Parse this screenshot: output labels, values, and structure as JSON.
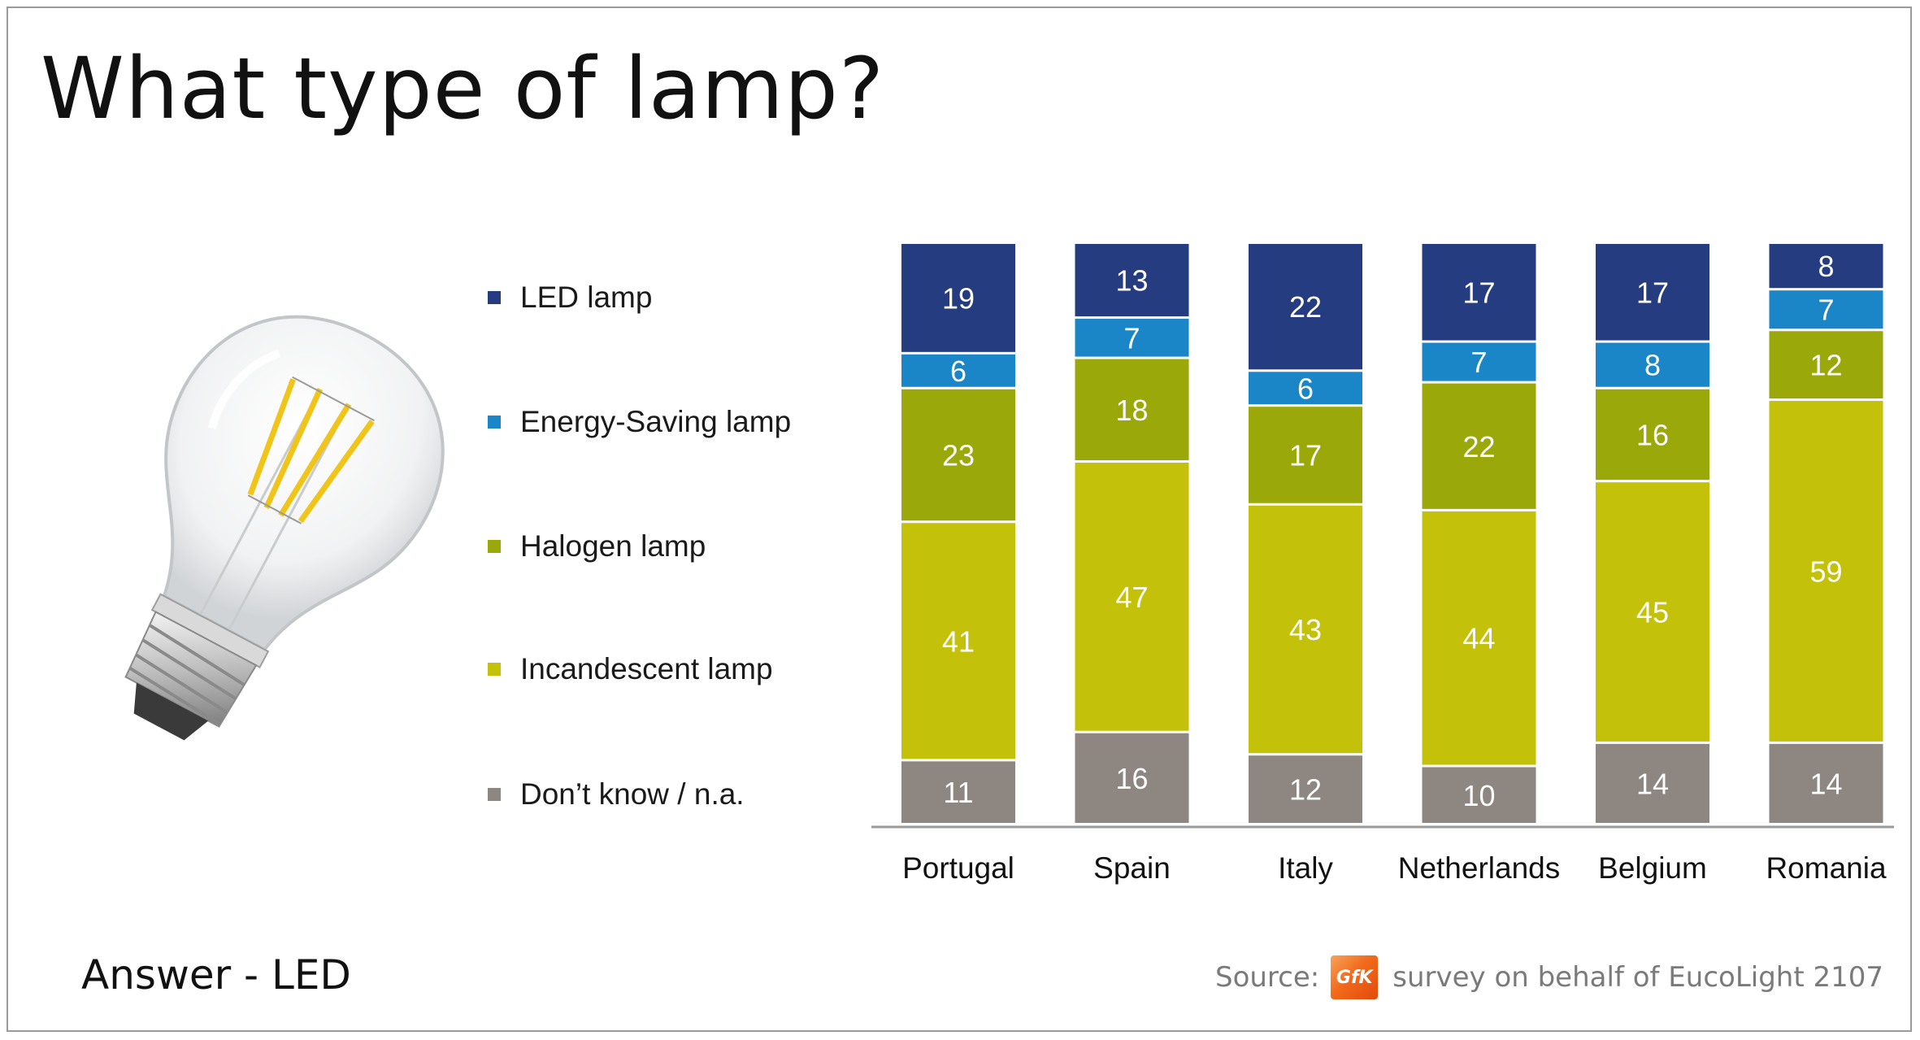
{
  "title": "What type of lamp?",
  "answer_text": "Answer - LED",
  "source": {
    "label": "Source:",
    "logo_text": "GfK",
    "text": "survey on behalf of EucoLight 2107"
  },
  "image": {
    "subject": "filament LED bulb illustration",
    "icon": "light-bulb-icon"
  },
  "colors": {
    "led": "#253d80",
    "energy_saving": "#1a86c8",
    "halogen": "#9aa80a",
    "incandescent": "#c3c10a",
    "dont_know": "#8e8680"
  },
  "chart_data": {
    "type": "bar",
    "stacked": true,
    "orientation": "vertical",
    "legend_position": "left",
    "grid": false,
    "categories": [
      "Portugal",
      "Spain",
      "Italy",
      "Netherlands",
      "Belgium",
      "Romania"
    ],
    "series": [
      {
        "name": "LED lamp",
        "color": "#253d80",
        "values": [
          19,
          13,
          22,
          17,
          17,
          8
        ]
      },
      {
        "name": "Energy-Saving lamp",
        "color": "#1a86c8",
        "values": [
          6,
          7,
          6,
          7,
          8,
          7
        ]
      },
      {
        "name": "Halogen lamp",
        "color": "#9aa80a",
        "values": [
          23,
          18,
          17,
          22,
          16,
          12
        ]
      },
      {
        "name": "Incandescent lamp",
        "color": "#c3c10a",
        "values": [
          41,
          47,
          43,
          44,
          45,
          59
        ]
      },
      {
        "name": "Don’t know / n.a.",
        "color": "#8e8680",
        "values": [
          11,
          16,
          12,
          10,
          14,
          14
        ]
      }
    ]
  }
}
